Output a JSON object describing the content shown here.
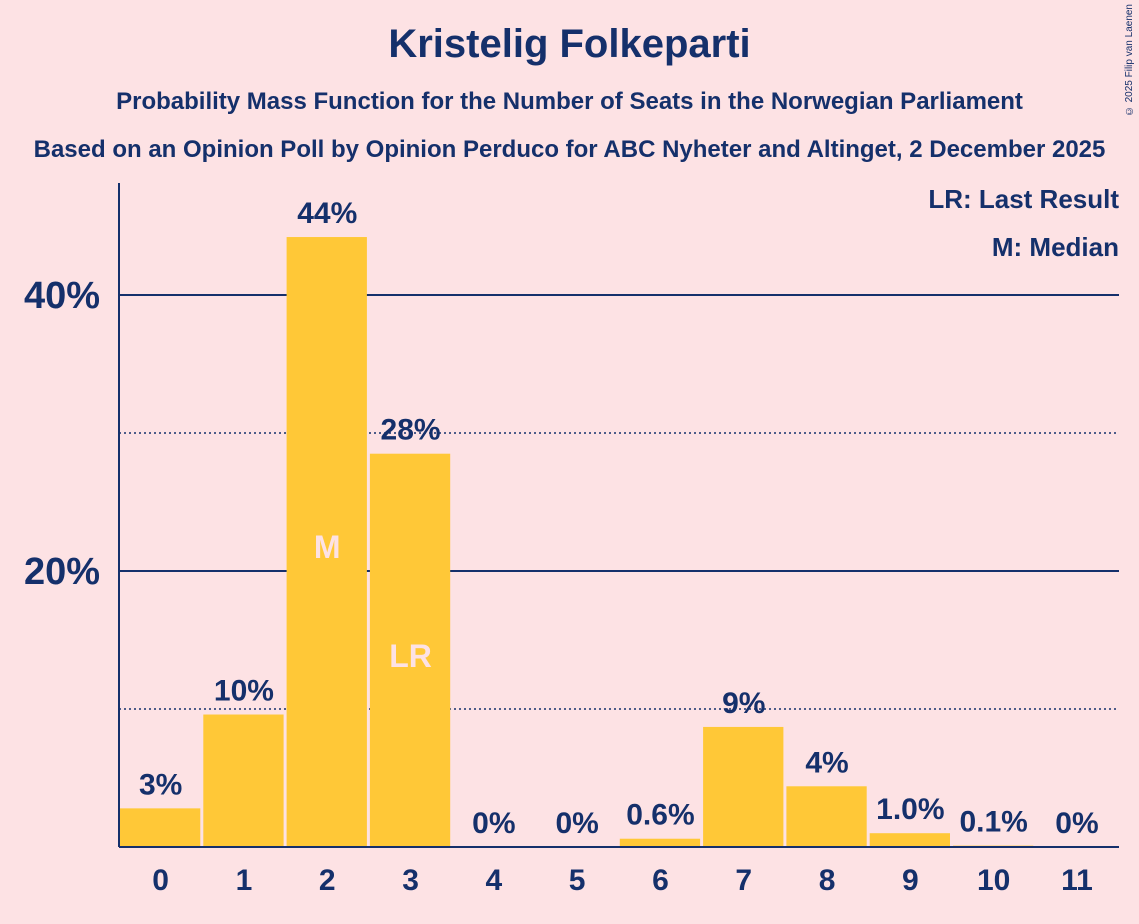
{
  "title": "Kristelig Folkeparti",
  "subtitle": "Probability Mass Function for the Number of Seats in the Norwegian Parliament",
  "subtitle2": "Based on an Opinion Poll by Opinion Perduco for ABC Nyheter and Altinget, 2 December 2025",
  "copyright": "© 2025 Filip van Laenen",
  "legend": {
    "last_result": "LR: Last Result",
    "median": "M: Median"
  },
  "colors": {
    "background": "#FDE2E4",
    "bar": "#FFC837",
    "text": "#15306B",
    "marker_text": "#FDE2E4"
  },
  "chart_data": {
    "type": "bar",
    "categories": [
      "0",
      "1",
      "2",
      "3",
      "4",
      "5",
      "6",
      "7",
      "8",
      "9",
      "10",
      "11"
    ],
    "values": [
      2.8,
      9.6,
      44.2,
      28.5,
      0,
      0,
      0.6,
      8.7,
      4.4,
      1.0,
      0.1,
      0
    ],
    "value_labels": [
      "3%",
      "10%",
      "44%",
      "28%",
      "0%",
      "0%",
      "0.6%",
      "9%",
      "4%",
      "1.0%",
      "0.1%",
      "0%"
    ],
    "bar_markers": {
      "2": "M",
      "3": "LR"
    },
    "ylim": [
      0,
      48
    ],
    "yticks": [
      {
        "value": 20,
        "label": "20%"
      },
      {
        "value": 40,
        "label": "40%"
      }
    ],
    "gridlines_solid": [
      20,
      40
    ],
    "gridlines_dotted": [
      10,
      30
    ],
    "xlabel": "",
    "ylabel": ""
  }
}
